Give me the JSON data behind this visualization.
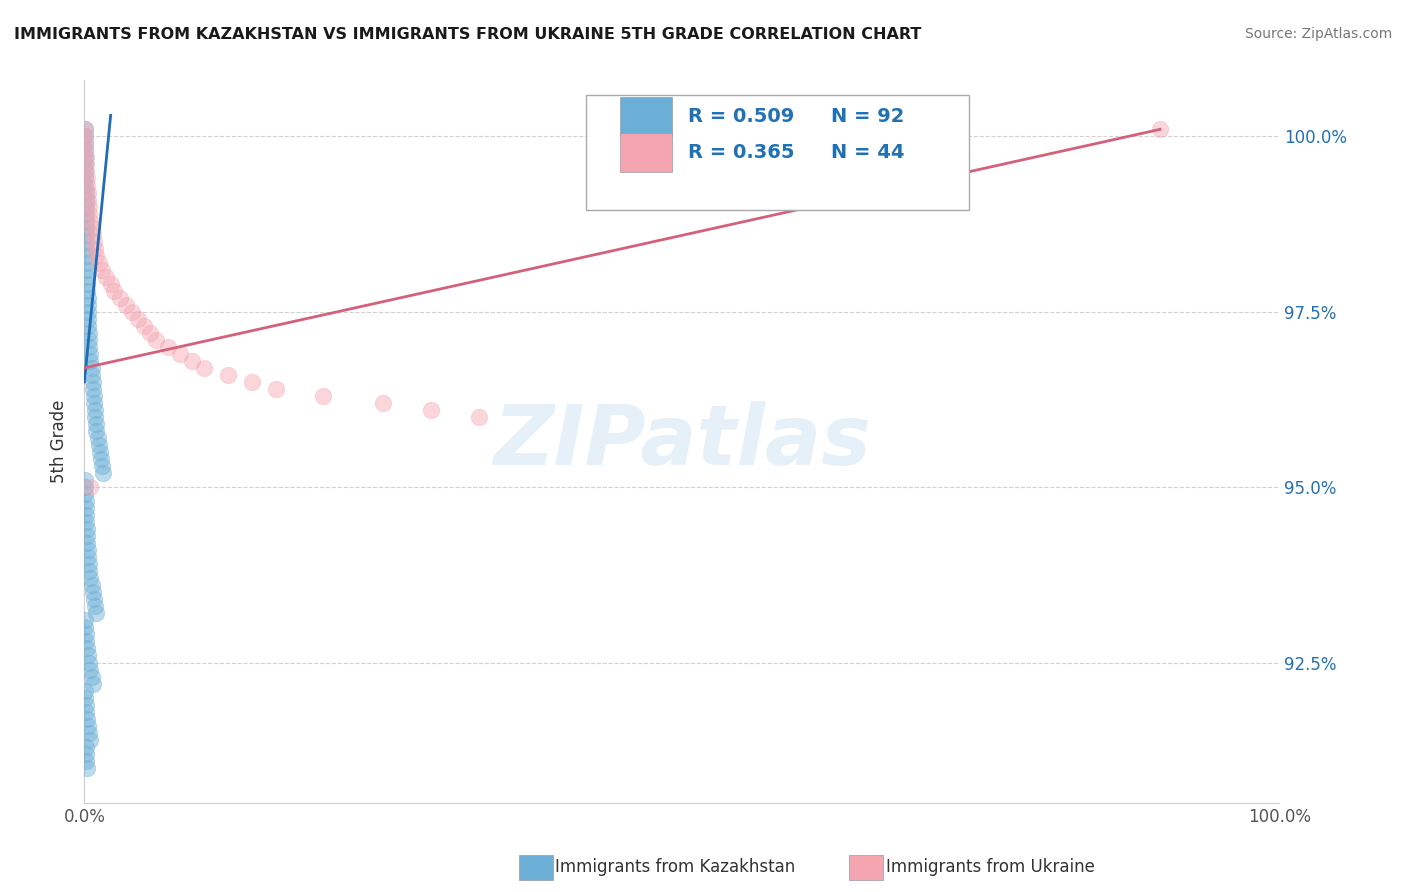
{
  "title": "IMMIGRANTS FROM KAZAKHSTAN VS IMMIGRANTS FROM UKRAINE 5TH GRADE CORRELATION CHART",
  "source": "Source: ZipAtlas.com",
  "ylabel": "5th Grade",
  "ytick_labels": [
    "100.0%",
    "97.5%",
    "95.0%",
    "92.5%"
  ],
  "ytick_values": [
    1.0,
    0.975,
    0.95,
    0.925
  ],
  "legend_blue_r": "R = 0.509",
  "legend_blue_n": "N = 92",
  "legend_pink_r": "R = 0.365",
  "legend_pink_n": "N = 44",
  "blue_color": "#6baed6",
  "pink_color": "#f4a5b0",
  "blue_line_color": "#1f6db5",
  "pink_line_color": "#d4607a",
  "legend_text_color": "#2171b5",
  "watermark_text": "ZIPatlas",
  "xlim": [
    0.0,
    1.0
  ],
  "ylim": [
    0.905,
    1.008
  ],
  "blue_trend_x0": 0.0,
  "blue_trend_y0": 0.965,
  "blue_trend_x1": 0.022,
  "blue_trend_y1": 1.003,
  "pink_trend_x0": 0.0,
  "pink_trend_y0": 0.967,
  "pink_trend_x1": 0.9,
  "pink_trend_y1": 1.001,
  "blue_scatter_x": [
    0.0005,
    0.0005,
    0.0005,
    0.0005,
    0.0005,
    0.0005,
    0.0005,
    0.0005,
    0.0005,
    0.001,
    0.001,
    0.001,
    0.001,
    0.001,
    0.001,
    0.0015,
    0.0015,
    0.0015,
    0.002,
    0.002,
    0.002,
    0.002,
    0.0025,
    0.0025,
    0.003,
    0.003,
    0.003,
    0.003,
    0.003,
    0.004,
    0.004,
    0.004,
    0.005,
    0.005,
    0.006,
    0.006,
    0.007,
    0.007,
    0.008,
    0.008,
    0.009,
    0.009,
    0.01,
    0.01,
    0.011,
    0.012,
    0.013,
    0.014,
    0.015,
    0.016,
    0.0005,
    0.0005,
    0.0005,
    0.001,
    0.001,
    0.001,
    0.0015,
    0.002,
    0.002,
    0.002,
    0.003,
    0.003,
    0.004,
    0.004,
    0.005,
    0.006,
    0.007,
    0.008,
    0.009,
    0.01,
    0.0005,
    0.0005,
    0.001,
    0.001,
    0.002,
    0.003,
    0.004,
    0.005,
    0.006,
    0.007,
    0.0005,
    0.0005,
    0.001,
    0.001,
    0.002,
    0.003,
    0.004,
    0.005,
    0.001,
    0.001,
    0.001,
    0.002
  ],
  "blue_scatter_y": [
    1.001,
    1.0,
    0.999,
    0.998,
    0.997,
    0.996,
    0.995,
    0.994,
    0.993,
    0.992,
    0.991,
    0.99,
    0.989,
    0.988,
    0.987,
    0.986,
    0.985,
    0.984,
    0.983,
    0.982,
    0.981,
    0.98,
    0.979,
    0.978,
    0.977,
    0.976,
    0.975,
    0.974,
    0.973,
    0.972,
    0.971,
    0.97,
    0.969,
    0.968,
    0.967,
    0.966,
    0.965,
    0.964,
    0.963,
    0.962,
    0.961,
    0.96,
    0.959,
    0.958,
    0.957,
    0.956,
    0.955,
    0.954,
    0.953,
    0.952,
    0.951,
    0.95,
    0.949,
    0.948,
    0.947,
    0.946,
    0.945,
    0.944,
    0.943,
    0.942,
    0.941,
    0.94,
    0.939,
    0.938,
    0.937,
    0.936,
    0.935,
    0.934,
    0.933,
    0.932,
    0.931,
    0.93,
    0.929,
    0.928,
    0.927,
    0.926,
    0.925,
    0.924,
    0.923,
    0.922,
    0.921,
    0.92,
    0.919,
    0.918,
    0.917,
    0.916,
    0.915,
    0.914,
    0.913,
    0.912,
    0.911,
    0.91
  ],
  "pink_scatter_x": [
    0.0005,
    0.0005,
    0.0005,
    0.0005,
    0.001,
    0.001,
    0.001,
    0.002,
    0.002,
    0.003,
    0.003,
    0.004,
    0.004,
    0.005,
    0.006,
    0.007,
    0.008,
    0.009,
    0.01,
    0.012,
    0.015,
    0.018,
    0.022,
    0.025,
    0.03,
    0.035,
    0.04,
    0.045,
    0.05,
    0.055,
    0.06,
    0.07,
    0.08,
    0.09,
    0.1,
    0.12,
    0.14,
    0.16,
    0.2,
    0.25,
    0.29,
    0.33,
    0.005,
    0.9
  ],
  "pink_scatter_y": [
    1.001,
    1.0,
    0.999,
    0.998,
    0.997,
    0.996,
    0.995,
    0.994,
    0.993,
    0.992,
    0.991,
    0.99,
    0.989,
    0.988,
    0.987,
    0.986,
    0.985,
    0.984,
    0.983,
    0.982,
    0.981,
    0.98,
    0.979,
    0.978,
    0.977,
    0.976,
    0.975,
    0.974,
    0.973,
    0.972,
    0.971,
    0.97,
    0.969,
    0.968,
    0.967,
    0.966,
    0.965,
    0.964,
    0.963,
    0.962,
    0.961,
    0.96,
    0.95,
    1.001
  ]
}
